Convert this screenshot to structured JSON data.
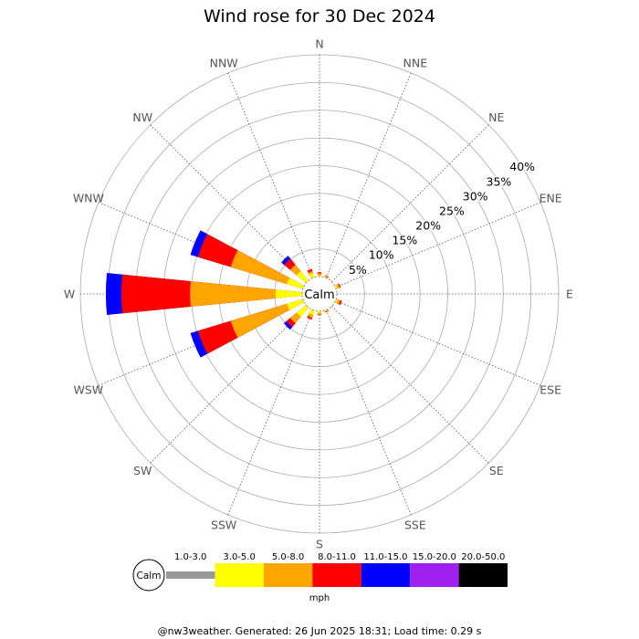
{
  "chart_data": {
    "type": "wind_rose",
    "title": "Wind rose for 30 Dec 2024",
    "directions": [
      "N",
      "NNE",
      "NE",
      "ENE",
      "E",
      "ESE",
      "SE",
      "SSE",
      "S",
      "SSW",
      "SW",
      "WSW",
      "W",
      "WNW",
      "NW",
      "NNW"
    ],
    "radial_ticks": [
      "5%",
      "10%",
      "15%",
      "20%",
      "25%",
      "30%",
      "35%",
      "40%"
    ],
    "radial_max": 40,
    "calm_label": "Calm",
    "units": "mph",
    "speed_bins": [
      {
        "label": "1.0-3.0",
        "color": "#999999"
      },
      {
        "label": "3.0-5.0",
        "color": "#ffff00"
      },
      {
        "label": "5.0-8.0",
        "color": "#ffa500"
      },
      {
        "label": "8.0-11.0",
        "color": "#ff0000"
      },
      {
        "label": "11.0-15.0",
        "color": "#0000ff"
      },
      {
        "label": "15.0-20.0",
        "color": "#a020f0"
      },
      {
        "label": "20.0-50.0",
        "color": "#000000"
      }
    ],
    "series": [
      {
        "direction": "N",
        "cumulative_pct": [
          0,
          0.2,
          0.6,
          0.8,
          0.8,
          0.8,
          0.8
        ]
      },
      {
        "direction": "NNE",
        "cumulative_pct": [
          0,
          0.1,
          0.3,
          0.4,
          0.4,
          0.4,
          0.4
        ]
      },
      {
        "direction": "NE",
        "cumulative_pct": [
          0,
          0,
          0,
          0,
          0,
          0,
          0
        ]
      },
      {
        "direction": "ENE",
        "cumulative_pct": [
          0,
          0.3,
          0.7,
          0.9,
          0.9,
          0.9,
          0.9
        ]
      },
      {
        "direction": "E",
        "cumulative_pct": [
          0,
          0,
          0,
          0,
          0,
          0,
          0
        ]
      },
      {
        "direction": "ESE",
        "cumulative_pct": [
          0,
          0.3,
          0.8,
          1.1,
          1.1,
          1.1,
          1.1
        ]
      },
      {
        "direction": "SE",
        "cumulative_pct": [
          0,
          0,
          0,
          0,
          0,
          0,
          0
        ]
      },
      {
        "direction": "SSE",
        "cumulative_pct": [
          0,
          0.1,
          0.3,
          0.4,
          0.4,
          0.4,
          0.4
        ]
      },
      {
        "direction": "S",
        "cumulative_pct": [
          0,
          0.3,
          0.6,
          0.7,
          0.7,
          0.7,
          0.7
        ]
      },
      {
        "direction": "SSW",
        "cumulative_pct": [
          0,
          0.8,
          1.4,
          1.7,
          1.7,
          1.7,
          1.7
        ]
      },
      {
        "direction": "SW",
        "cumulative_pct": [
          0,
          2.2,
          3.7,
          4.6,
          5.2,
          5.2,
          5.2
        ]
      },
      {
        "direction": "WSW",
        "cumulative_pct": [
          0,
          3.0,
          13.6,
          19.8,
          21.2,
          21.2,
          21.2
        ]
      },
      {
        "direction": "W",
        "cumulative_pct": [
          0,
          4.8,
          20.2,
          32.6,
          35.4,
          35.4,
          35.4
        ]
      },
      {
        "direction": "WNW",
        "cumulative_pct": [
          0,
          3.0,
          13.6,
          19.8,
          21.2,
          21.2,
          21.2
        ]
      },
      {
        "direction": "NW",
        "cumulative_pct": [
          0,
          2.2,
          3.7,
          5.1,
          5.8,
          5.8,
          5.8
        ]
      },
      {
        "direction": "NNW",
        "cumulative_pct": [
          0,
          0.8,
          1.2,
          1.6,
          1.6,
          1.6,
          1.6
        ]
      }
    ]
  },
  "footer": "@nw3weather. Generated: 26 Jun 2025 18:31; Load time: 0.29 s"
}
